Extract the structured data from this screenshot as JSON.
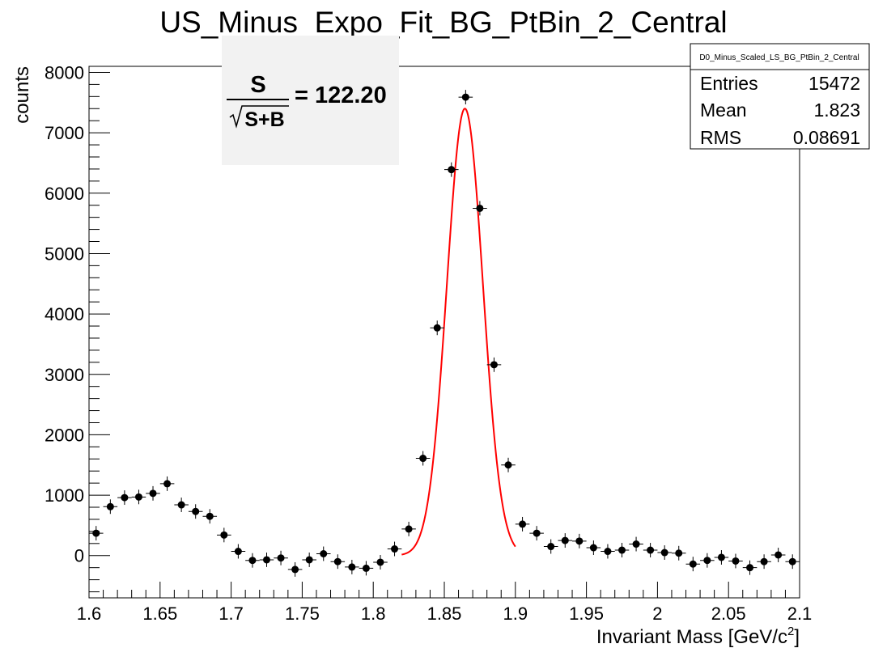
{
  "chart_data": {
    "type": "scatter",
    "title": "US_Minus_Expo_Fit_BG_PtBin_2_Central",
    "xlabel_main": "Invariant Mass [GeV/c",
    "xlabel_sup": "2",
    "xlabel_close": "]",
    "ylabel": "counts",
    "xlim": [
      1.6,
      2.1
    ],
    "ylim": [
      -700,
      8100
    ],
    "x_ticks": [
      1.6,
      1.65,
      1.7,
      1.75,
      1.8,
      1.85,
      1.9,
      1.95,
      2.0,
      2.05,
      2.1
    ],
    "x_tick_labels": [
      "1.6",
      "1.65",
      "1.7",
      "1.75",
      "1.8",
      "1.85",
      "1.9",
      "1.95",
      "2",
      "2.05",
      "2.1"
    ],
    "y_ticks": [
      0,
      1000,
      2000,
      3000,
      4000,
      5000,
      6000,
      7000,
      8000
    ],
    "y_tick_labels": [
      "0",
      "1000",
      "2000",
      "3000",
      "4000",
      "5000",
      "6000",
      "7000",
      "8000"
    ],
    "bin_width": 0.01,
    "series": [
      {
        "marker_color": "#000000",
        "points": [
          {
            "x": 1.605,
            "y": 370,
            "err": 120
          },
          {
            "x": 1.615,
            "y": 810,
            "err": 120
          },
          {
            "x": 1.625,
            "y": 960,
            "err": 120
          },
          {
            "x": 1.635,
            "y": 970,
            "err": 120
          },
          {
            "x": 1.645,
            "y": 1030,
            "err": 120
          },
          {
            "x": 1.655,
            "y": 1190,
            "err": 120
          },
          {
            "x": 1.665,
            "y": 840,
            "err": 120
          },
          {
            "x": 1.675,
            "y": 730,
            "err": 120
          },
          {
            "x": 1.685,
            "y": 650,
            "err": 120
          },
          {
            "x": 1.695,
            "y": 340,
            "err": 120
          },
          {
            "x": 1.705,
            "y": 70,
            "err": 120
          },
          {
            "x": 1.715,
            "y": -80,
            "err": 120
          },
          {
            "x": 1.725,
            "y": -70,
            "err": 120
          },
          {
            "x": 1.735,
            "y": -40,
            "err": 120
          },
          {
            "x": 1.745,
            "y": -230,
            "err": 120
          },
          {
            "x": 1.755,
            "y": -70,
            "err": 120
          },
          {
            "x": 1.765,
            "y": 30,
            "err": 120
          },
          {
            "x": 1.775,
            "y": -100,
            "err": 120
          },
          {
            "x": 1.785,
            "y": -190,
            "err": 120
          },
          {
            "x": 1.795,
            "y": -210,
            "err": 120
          },
          {
            "x": 1.805,
            "y": -110,
            "err": 120
          },
          {
            "x": 1.815,
            "y": 110,
            "err": 120
          },
          {
            "x": 1.825,
            "y": 440,
            "err": 120
          },
          {
            "x": 1.835,
            "y": 1610,
            "err": 120
          },
          {
            "x": 1.845,
            "y": 3770,
            "err": 120
          },
          {
            "x": 1.855,
            "y": 6390,
            "err": 120
          },
          {
            "x": 1.865,
            "y": 7590,
            "err": 120
          },
          {
            "x": 1.875,
            "y": 5750,
            "err": 120
          },
          {
            "x": 1.885,
            "y": 3160,
            "err": 120
          },
          {
            "x": 1.895,
            "y": 1500,
            "err": 120
          },
          {
            "x": 1.905,
            "y": 520,
            "err": 120
          },
          {
            "x": 1.915,
            "y": 370,
            "err": 120
          },
          {
            "x": 1.925,
            "y": 150,
            "err": 120
          },
          {
            "x": 1.935,
            "y": 250,
            "err": 120
          },
          {
            "x": 1.945,
            "y": 240,
            "err": 120
          },
          {
            "x": 1.955,
            "y": 130,
            "err": 120
          },
          {
            "x": 1.965,
            "y": 70,
            "err": 120
          },
          {
            "x": 1.975,
            "y": 90,
            "err": 120
          },
          {
            "x": 1.985,
            "y": 190,
            "err": 120
          },
          {
            "x": 1.995,
            "y": 90,
            "err": 120
          },
          {
            "x": 2.005,
            "y": 50,
            "err": 120
          },
          {
            "x": 2.015,
            "y": 40,
            "err": 120
          },
          {
            "x": 2.025,
            "y": -140,
            "err": 120
          },
          {
            "x": 2.035,
            "y": -80,
            "err": 120
          },
          {
            "x": 2.045,
            "y": -30,
            "err": 120
          },
          {
            "x": 2.055,
            "y": -90,
            "err": 120
          },
          {
            "x": 2.065,
            "y": -200,
            "err": 120
          },
          {
            "x": 2.075,
            "y": -100,
            "err": 120
          },
          {
            "x": 2.085,
            "y": 10,
            "err": 120
          },
          {
            "x": 2.095,
            "y": -100,
            "err": 120
          }
        ]
      }
    ],
    "fit": {
      "type": "gaussian",
      "color": "#ff0000",
      "amplitude": 7400,
      "mean": 1.8645,
      "sigma": 0.0127,
      "range": [
        1.82,
        1.9
      ]
    }
  },
  "significance": {
    "numerator": "S",
    "denominator": "S+B",
    "value": "= 122.20"
  },
  "stats_box": {
    "name": "D0_Minus_Scaled_LS_BG_PtBin_2_Central",
    "rows": [
      {
        "label": "Entries",
        "value": "15472"
      },
      {
        "label": "Mean",
        "value": "1.823"
      },
      {
        "label": "RMS",
        "value": "0.08691"
      }
    ]
  }
}
